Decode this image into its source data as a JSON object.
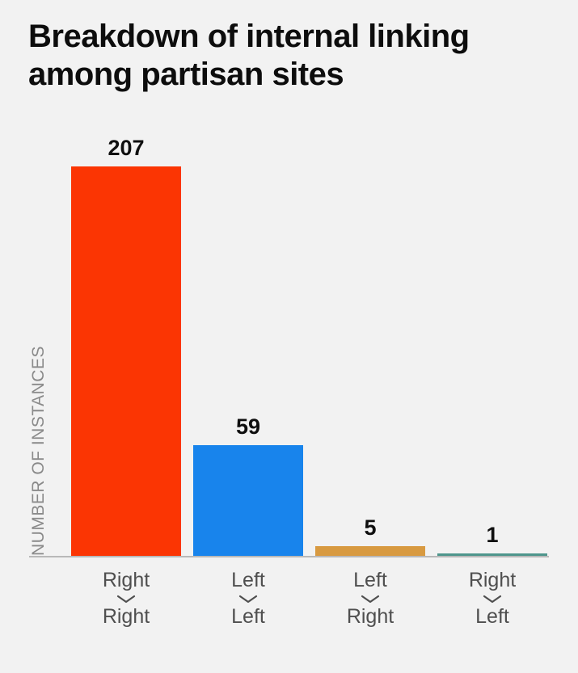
{
  "page": {
    "background": "#f2f2f2"
  },
  "title": {
    "full": "Breakdown of internal linking among partisan sites",
    "line1": "Breakdown of internal linking",
    "line2": "among partisan sites"
  },
  "chart_data": {
    "type": "bar",
    "title": "Breakdown of internal linking among partisan sites",
    "xlabel": "",
    "ylabel": "NUMBER OF INSTANCES",
    "ylim": [
      0,
      220
    ],
    "grid": false,
    "legend": null,
    "value_labels_shown": true,
    "categories": [
      "Right → Right",
      "Left → Left",
      "Left → Right",
      "Right → Left"
    ],
    "values": [
      207,
      59,
      5,
      1
    ],
    "bars": [
      {
        "from": "Right",
        "to": "Right",
        "value": 207,
        "color": "#fb3503"
      },
      {
        "from": "Left",
        "to": "Left",
        "value": 59,
        "color": "#1884ec"
      },
      {
        "from": "Left",
        "to": "Right",
        "value": 5,
        "color": "#d89a41"
      },
      {
        "from": "Right",
        "to": "Left",
        "value": 1,
        "color": "#4f968c"
      }
    ]
  },
  "colors": {
    "background": "#f2f2f2",
    "axis_line": "#b9b9b9",
    "title_text": "#0d0d0d",
    "value_label_text": "#0f0f0f",
    "category_label_text": "#4f4f4f",
    "y_axis_label_text": "#8a8a8a"
  }
}
